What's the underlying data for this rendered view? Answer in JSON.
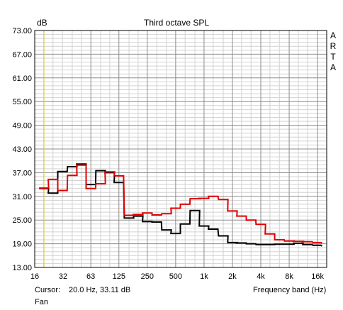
{
  "chart_data": {
    "type": "line",
    "title": "Third octave SPL",
    "ylabel": "dB",
    "xlabel": "Frequency band (Hz)",
    "watermark": "ARTA",
    "x_scale": "log",
    "xlim": [
      16,
      20000
    ],
    "ylim": [
      13,
      73
    ],
    "yticks": [
      "73.00",
      "67.00",
      "61.00",
      "55.00",
      "49.00",
      "43.00",
      "37.00",
      "31.00",
      "25.00",
      "19.00",
      "13.00"
    ],
    "xticks": [
      {
        "value": 16,
        "label": "16"
      },
      {
        "value": 32,
        "label": "32"
      },
      {
        "value": 63,
        "label": "63"
      },
      {
        "value": 125,
        "label": "125"
      },
      {
        "value": 250,
        "label": "250"
      },
      {
        "value": 500,
        "label": "500"
      },
      {
        "value": 1000,
        "label": "1k"
      },
      {
        "value": 2000,
        "label": "2k"
      },
      {
        "value": 4000,
        "label": "4k"
      },
      {
        "value": 8000,
        "label": "8k"
      },
      {
        "value": 16000,
        "label": "16k"
      }
    ],
    "grid": true,
    "cursor": {
      "freq": 20.0,
      "label": "Cursor:",
      "readout": "20.0 Hz, 33.11 dB"
    },
    "bands": [
      20,
      25,
      31.5,
      40,
      50,
      63,
      80,
      100,
      125,
      160,
      200,
      250,
      315,
      400,
      500,
      630,
      800,
      1000,
      1250,
      1600,
      2000,
      2500,
      3150,
      4000,
      5000,
      6300,
      8000,
      10000,
      12500,
      16000,
      20000
    ],
    "series": [
      {
        "color": "#000000",
        "values": [
          33.0,
          31.8,
          37.3,
          38.5,
          39.2,
          34.0,
          37.5,
          37.0,
          34.5,
          25.5,
          26.0,
          24.6,
          24.5,
          22.5,
          21.6,
          24.0,
          27.4,
          23.5,
          22.7,
          21.0,
          19.3,
          19.2,
          19.0,
          18.8,
          18.8,
          18.9,
          18.9,
          19.1,
          18.8,
          18.6,
          18.5
        ]
      },
      {
        "color": "#e00000",
        "values": [
          33.1,
          35.3,
          32.5,
          36.3,
          38.9,
          33.0,
          34.2,
          37.2,
          36.2,
          26.2,
          26.4,
          26.8,
          26.3,
          26.6,
          28.0,
          29.0,
          30.4,
          30.5,
          31.0,
          30.2,
          27.3,
          26.0,
          25.0,
          23.9,
          21.5,
          20.0,
          19.7,
          19.6,
          19.5,
          19.3,
          19.2
        ]
      }
    ]
  },
  "footer": {
    "band_label": "Frequency band (Hz)",
    "legend_label": "Fan"
  }
}
